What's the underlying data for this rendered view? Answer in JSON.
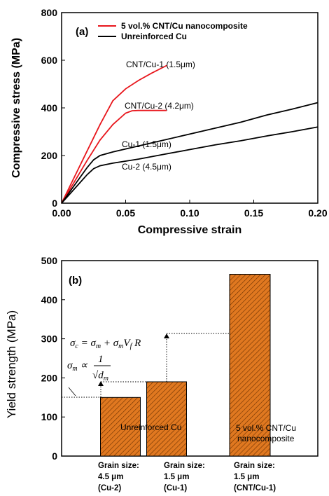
{
  "chart_data": [
    {
      "type": "line",
      "panel_label": "(a)",
      "xlabel": "Compressive strain",
      "ylabel": "Compressive stress (MPa)",
      "xlim": [
        0,
        0.2
      ],
      "ylim": [
        0,
        800
      ],
      "xticks": [
        "0.00",
        "0.05",
        "0.10",
        "0.15",
        "0.20"
      ],
      "yticks": [
        "0",
        "200",
        "400",
        "600",
        "800"
      ],
      "legend_placement": "top",
      "legend": [
        {
          "label": "5 vol.% CNT/Cu nanocomposite",
          "color": "#e8161c"
        },
        {
          "label": "Unreinforced Cu",
          "color": "#000000"
        }
      ],
      "series": [
        {
          "label": "CNT/Cu-1 (1.5μm)",
          "color": "#e8161c",
          "x": [
            0,
            0.01,
            0.02,
            0.03,
            0.04,
            0.05,
            0.06,
            0.07,
            0.082
          ],
          "y": [
            0,
            110,
            220,
            330,
            430,
            480,
            515,
            545,
            578
          ]
        },
        {
          "label": "CNT/Cu-2 (4.2μm)",
          "color": "#e8161c",
          "x": [
            0,
            0.01,
            0.02,
            0.03,
            0.04,
            0.05,
            0.055,
            0.06,
            0.07,
            0.082
          ],
          "y": [
            0,
            90,
            180,
            265,
            330,
            378,
            388,
            389,
            389,
            389
          ]
        },
        {
          "label": "Cu-1 (1.5μm)",
          "color": "#000000",
          "x": [
            0,
            0.01,
            0.02,
            0.025,
            0.03,
            0.04,
            0.06,
            0.08,
            0.1,
            0.12,
            0.14,
            0.16,
            0.18,
            0.2
          ],
          "y": [
            0,
            75,
            150,
            182,
            200,
            215,
            240,
            265,
            290,
            315,
            340,
            370,
            395,
            422
          ]
        },
        {
          "label": "Cu-2 (4.5μm)",
          "color": "#000000",
          "x": [
            0,
            0.01,
            0.02,
            0.025,
            0.03,
            0.04,
            0.06,
            0.08,
            0.1,
            0.12,
            0.14,
            0.16,
            0.18,
            0.2
          ],
          "y": [
            0,
            60,
            120,
            145,
            157,
            168,
            185,
            205,
            225,
            245,
            262,
            282,
            300,
            320
          ]
        }
      ]
    },
    {
      "type": "bar",
      "panel_label": "(b)",
      "ylabel": "Yield strength (MPa)",
      "ylim": [
        0,
        500
      ],
      "yticks": [
        "0",
        "100",
        "200",
        "300",
        "400",
        "500"
      ],
      "bar_color": "#e07820",
      "bar_pattern": "diagonal-hatch",
      "categories": [
        [
          "Grain size:",
          "4.5 μm",
          "(Cu-2)"
        ],
        [
          "Grain size:",
          "1.5 μm",
          "(Cu-1)"
        ],
        [
          "Grain size:",
          "1.5 μm",
          "(CNT/Cu-1)"
        ]
      ],
      "values": [
        150,
        190,
        465
      ],
      "bar_annotations": [
        {
          "lines": [
            "Unreinforced Cu"
          ],
          "spans_bars": [
            0,
            1
          ]
        },
        {
          "lines": [
            "5 vol.% CNT/Cu",
            "nanocomposite"
          ],
          "spans_bars": [
            2
          ]
        }
      ],
      "equations": [
        "σc = σm + σmVfR",
        "σm ∝ 1/√dm"
      ]
    }
  ]
}
